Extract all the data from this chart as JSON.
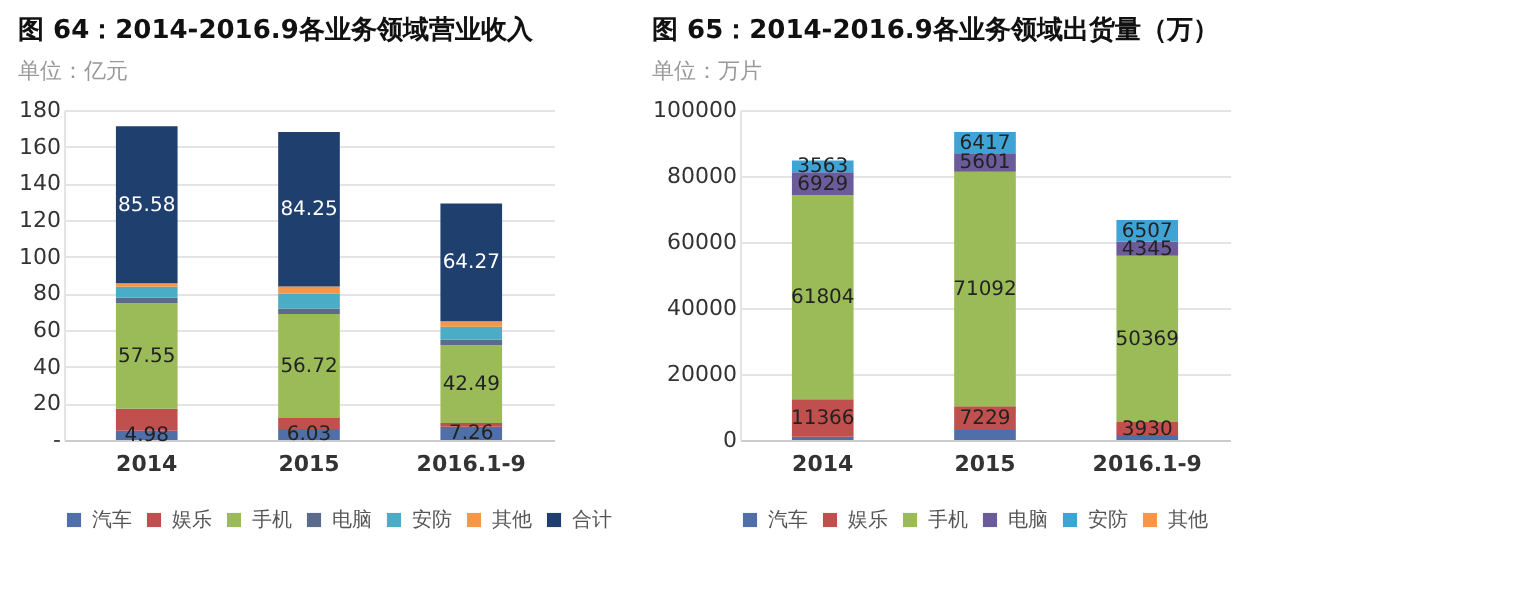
{
  "chart_data": [
    {
      "type": "bar",
      "title": "图 64：2014-2016.9各业务领域营业收入",
      "subtitle": "单位：亿元",
      "categories": [
        "2014",
        "2015",
        "2016.1-9"
      ],
      "stacked": true,
      "ylim": [
        0,
        180
      ],
      "yticks": [
        {
          "value": 0,
          "label": "-"
        },
        20,
        40,
        60,
        80,
        100,
        120,
        140,
        160,
        180
      ],
      "grid": "y",
      "legend": "bottom",
      "series": [
        {
          "name": "汽车",
          "color": "#4f6fa8",
          "values": [
            4.98,
            6.03,
            7.26
          ],
          "value_labels": [
            "4.98",
            "6.03",
            "7.26"
          ]
        },
        {
          "name": "娱乐",
          "color": "#c0504d",
          "values": [
            12,
            6,
            2
          ]
        },
        {
          "name": "手机",
          "color": "#9bbb59",
          "values": [
            57.55,
            56.72,
            42.49
          ],
          "value_labels": [
            "57.55",
            "56.72",
            "42.49"
          ]
        },
        {
          "name": "电脑",
          "color": "#5a6b8c",
          "values": [
            3,
            3,
            3
          ]
        },
        {
          "name": "安防",
          "color": "#4bacc6",
          "values": [
            6,
            8,
            7
          ]
        },
        {
          "name": "其他",
          "color": "#f79646",
          "values": [
            2,
            4,
            3
          ]
        },
        {
          "name": "合计",
          "color": "#1f3f6e",
          "values": [
            85.58,
            84.25,
            64.27
          ],
          "value_labels": [
            "85.58",
            "84.25",
            "64.27"
          ]
        }
      ]
    },
    {
      "type": "bar",
      "title": "图 65：2014-2016.9各业务领域出货量（万）",
      "subtitle": "单位：万片",
      "categories": [
        "2014",
        "2015",
        "2016.1-9"
      ],
      "stacked": true,
      "ylim": [
        0,
        100000
      ],
      "yticks": [
        0,
        20000,
        40000,
        60000,
        80000,
        100000
      ],
      "grid": "y",
      "legend": "bottom",
      "series": [
        {
          "name": "汽车",
          "color": "#4f6fa8",
          "values": [
            1000,
            3000,
            1500
          ]
        },
        {
          "name": "娱乐",
          "color": "#c0504d",
          "values": [
            11366,
            7229,
            3930
          ],
          "value_labels": [
            "11366",
            "7229",
            "3930"
          ]
        },
        {
          "name": "手机",
          "color": "#9bbb59",
          "values": [
            61804,
            71092,
            50369
          ],
          "value_labels": [
            "61804",
            "71092",
            "50369"
          ]
        },
        {
          "name": "电脑",
          "color": "#6b5b9a",
          "values": [
            6929,
            5601,
            4345
          ],
          "value_labels": [
            "6929",
            "5601",
            "4345"
          ]
        },
        {
          "name": "安防",
          "color": "#3fa3d6",
          "values": [
            3563,
            6417,
            6507
          ],
          "value_labels": [
            "3563",
            "6417",
            "6507"
          ]
        },
        {
          "name": "其他",
          "color": "#f79646",
          "values": [
            null,
            null,
            null
          ]
        }
      ]
    }
  ]
}
